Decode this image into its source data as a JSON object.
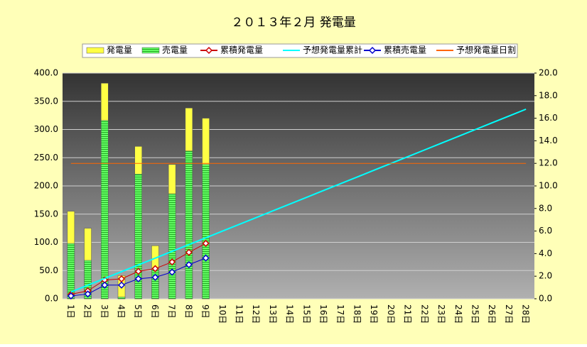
{
  "chart_data": {
    "type": "combo",
    "title": "２０１３年２月  発電量",
    "categories": [
      "1日",
      "2日",
      "3日",
      "4日",
      "5日",
      "6日",
      "7日",
      "8日",
      "9日",
      "10日",
      "11日",
      "12日",
      "13日",
      "14日",
      "15日",
      "16日",
      "17日",
      "18日",
      "19日",
      "20日",
      "21日",
      "22日",
      "23日",
      "24日",
      "25日",
      "26日",
      "27日",
      "28日"
    ],
    "ylim": [
      0,
      400
    ],
    "yticks": [
      {
        "value": 0,
        "label": "0.0"
      },
      {
        "value": 50,
        "label": "50.0"
      },
      {
        "value": 100,
        "label": "100.0"
      },
      {
        "value": 150,
        "label": "150.0"
      },
      {
        "value": 200,
        "label": "200.0"
      },
      {
        "value": 250,
        "label": "250.0"
      },
      {
        "value": 300,
        "label": "300.0"
      },
      {
        "value": 350,
        "label": "350.0"
      },
      {
        "value": 400,
        "label": "400.0"
      }
    ],
    "y2lim": [
      0,
      20
    ],
    "y2ticks": [
      {
        "value": 0,
        "label": "0.0"
      },
      {
        "value": 2,
        "label": "2.0"
      },
      {
        "value": 4,
        "label": "4.0"
      },
      {
        "value": 6,
        "label": "6.0"
      },
      {
        "value": 8,
        "label": "8.0"
      },
      {
        "value": 10,
        "label": "10.0"
      },
      {
        "value": 12,
        "label": "12.0"
      },
      {
        "value": 14,
        "label": "14.0"
      },
      {
        "value": 16,
        "label": "16.0"
      },
      {
        "value": 18,
        "label": "18.0"
      },
      {
        "value": 20,
        "label": "20.0"
      }
    ],
    "grid": true,
    "series": [
      {
        "name": "発電量",
        "kind": "bar",
        "color": "#ffff44",
        "values": [
          155,
          125,
          382,
          41,
          270,
          94,
          238,
          338,
          320,
          null,
          null,
          null,
          null,
          null,
          null,
          null,
          null,
          null,
          null,
          null,
          null,
          null,
          null,
          null,
          null,
          null,
          null,
          null
        ]
      },
      {
        "name": "売電量",
        "kind": "bar",
        "color": "#55ee55",
        "values": [
          98,
          68,
          316,
          3,
          221,
          52,
          186,
          262,
          238,
          null,
          null,
          null,
          null,
          null,
          null,
          null,
          null,
          null,
          null,
          null,
          null,
          null,
          null,
          null,
          null,
          null,
          null,
          null
        ]
      },
      {
        "name": "累積発電量",
        "kind": "line",
        "axis": "y2",
        "marker": "diamond",
        "color": "#cc0000",
        "values": [
          0.39,
          0.7,
          1.66,
          1.76,
          2.43,
          2.67,
          3.26,
          4.11,
          4.91,
          null,
          null,
          null,
          null,
          null,
          null,
          null,
          null,
          null,
          null,
          null,
          null,
          null,
          null,
          null,
          null,
          null,
          null,
          null
        ]
      },
      {
        "name": "予想発電量累計",
        "kind": "line",
        "axis": "y2",
        "color": "#00ffff",
        "values": [
          0.6,
          1.2,
          1.8,
          2.4,
          3.0,
          3.6,
          4.2,
          4.8,
          5.4,
          6.0,
          6.6,
          7.2,
          7.8,
          8.4,
          9.0,
          9.6,
          10.2,
          10.8,
          11.4,
          12.0,
          12.6,
          13.2,
          13.8,
          14.4,
          15.0,
          15.6,
          16.2,
          16.8
        ]
      },
      {
        "name": "累積売電量",
        "kind": "line",
        "axis": "y2",
        "marker": "diamond",
        "color": "#0000cc",
        "values": [
          0.25,
          0.42,
          1.21,
          1.21,
          1.77,
          1.9,
          2.36,
          3.02,
          3.61,
          null,
          null,
          null,
          null,
          null,
          null,
          null,
          null,
          null,
          null,
          null,
          null,
          null,
          null,
          null,
          null,
          null,
          null,
          null
        ]
      },
      {
        "name": "予想発電量日割",
        "kind": "line",
        "color": "#ff6600",
        "values": [
          240,
          240,
          240,
          240,
          240,
          240,
          240,
          240,
          240,
          240,
          240,
          240,
          240,
          240,
          240,
          240,
          240,
          240,
          240,
          240,
          240,
          240,
          240,
          240,
          240,
          240,
          240,
          240
        ]
      }
    ]
  }
}
